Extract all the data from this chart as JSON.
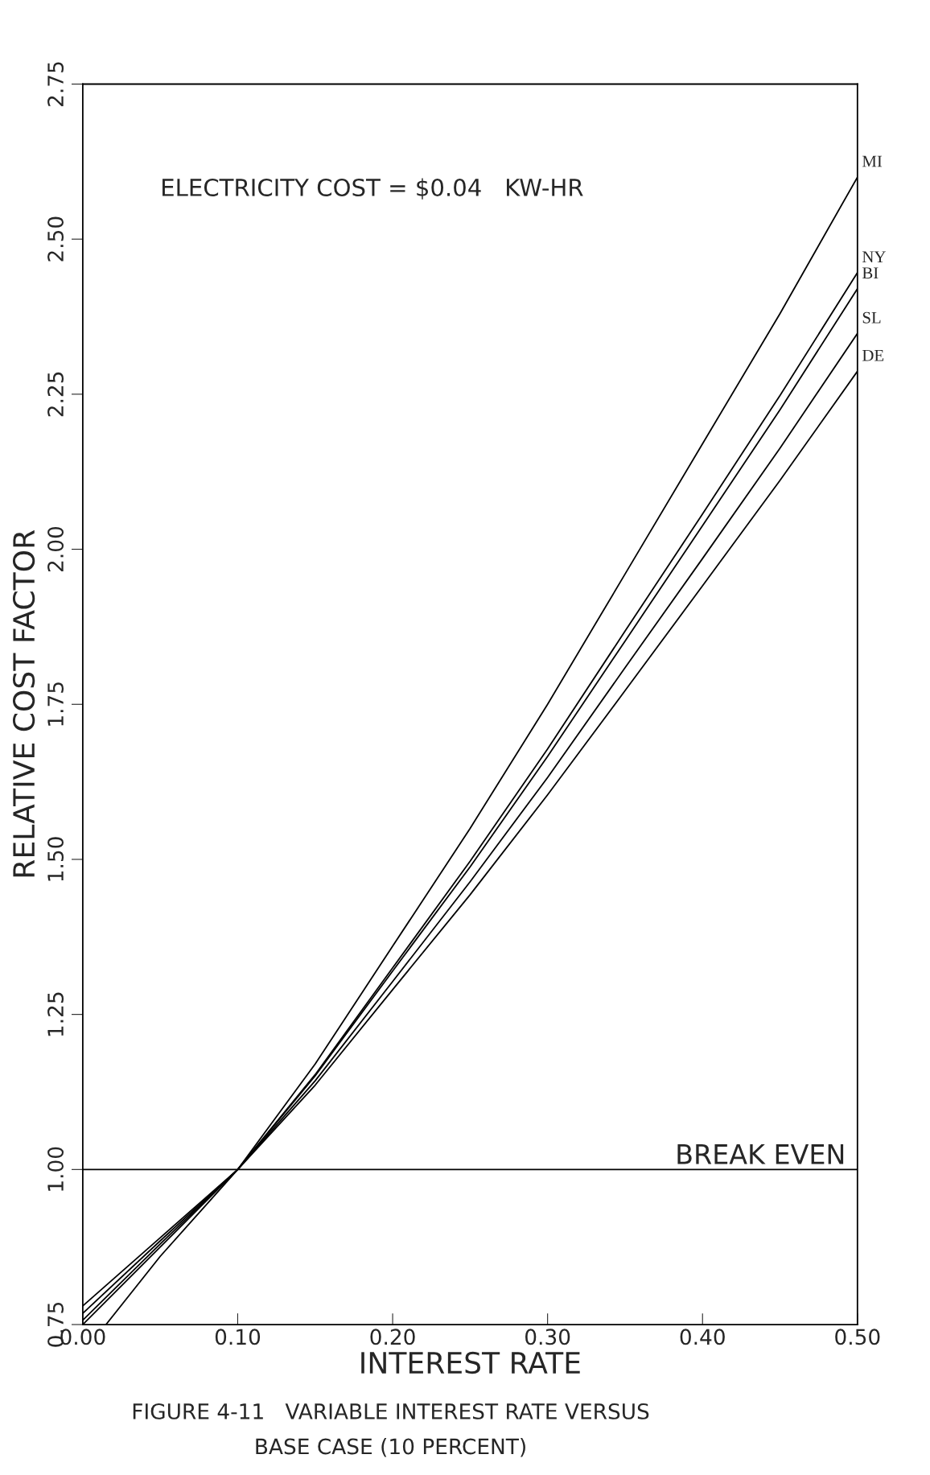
{
  "chart_data": {
    "type": "line",
    "xlabel": "INTEREST RATE",
    "ylabel": "RELATIVE COST FACTOR",
    "xlim": [
      0,
      0.5
    ],
    "ylim": [
      0.75,
      2.75
    ],
    "xticks": [
      {
        "value": 0,
        "label": "0.00"
      },
      {
        "value": 0.1,
        "label": "0.10"
      },
      {
        "value": 0.2,
        "label": "0.20"
      },
      {
        "value": 0.3,
        "label": "0.30"
      },
      {
        "value": 0.4,
        "label": "0.40"
      },
      {
        "value": 0.5,
        "label": "0.50"
      }
    ],
    "yticks": [
      0.75,
      {
        "value": 1,
        "label": "1.00"
      },
      1.25,
      {
        "value": 1.5,
        "label": "1.50"
      },
      1.75,
      {
        "value": 2,
        "label": "2.00"
      },
      2.25,
      {
        "value": 2.5,
        "label": "2.50"
      },
      2.75
    ],
    "grid": false,
    "legend": false,
    "line_style": "solid",
    "series": [
      {
        "name": "MI",
        "color": "#000000",
        "x": [
          0.015,
          0.05,
          0.1,
          0.15,
          0.2,
          0.25,
          0.3,
          0.35,
          0.4,
          0.45,
          0.5
        ],
        "values": [
          0.75,
          0.86,
          1.0,
          1.17,
          1.36,
          1.55,
          1.75,
          1.96,
          2.17,
          2.38,
          2.6
        ]
      },
      {
        "name": "NY",
        "color": "#000000",
        "x": [
          0,
          0.05,
          0.1,
          0.15,
          0.2,
          0.25,
          0.3,
          0.35,
          0.4,
          0.45,
          0.5
        ],
        "values": [
          0.75,
          0.875,
          1.0,
          1.153,
          1.325,
          1.497,
          1.678,
          1.868,
          2.057,
          2.248,
          2.446
        ]
      },
      {
        "name": "BI",
        "color": "#000000",
        "x": [
          0,
          0.05,
          0.1,
          0.15,
          0.2,
          0.25,
          0.3,
          0.35,
          0.4,
          0.45,
          0.5
        ],
        "values": [
          0.757,
          0.88,
          1.0,
          1.151,
          1.32,
          1.488,
          1.666,
          1.852,
          2.038,
          2.225,
          2.42
        ]
      },
      {
        "name": "SL",
        "color": "#000000",
        "x": [
          0,
          0.05,
          0.1,
          0.15,
          0.2,
          0.25,
          0.3,
          0.35,
          0.4,
          0.45,
          0.5
        ],
        "values": [
          0.768,
          0.885,
          1.0,
          1.143,
          1.303,
          1.464,
          1.632,
          1.809,
          1.985,
          2.163,
          2.348
        ]
      },
      {
        "name": "DE",
        "color": "#000000",
        "x": [
          0,
          0.05,
          0.1,
          0.15,
          0.2,
          0.25,
          0.3,
          0.35,
          0.4,
          0.45,
          0.5
        ],
        "values": [
          0.78,
          0.89,
          1.0,
          1.136,
          1.29,
          1.443,
          1.604,
          1.772,
          1.941,
          2.111,
          2.287
        ]
      }
    ],
    "ref_lines": [
      {
        "axis": "y",
        "value": 1.0,
        "label": "BREAK EVEN",
        "color": "#000000",
        "line_style": "solid"
      }
    ],
    "annotations": [
      "ELECTRICITY COST = $0.04   KW-HR",
      "FIGURE 4-11   VARIABLE INTEREST RATE VERSUS\nBASE CASE (10 PERCENT)"
    ]
  }
}
